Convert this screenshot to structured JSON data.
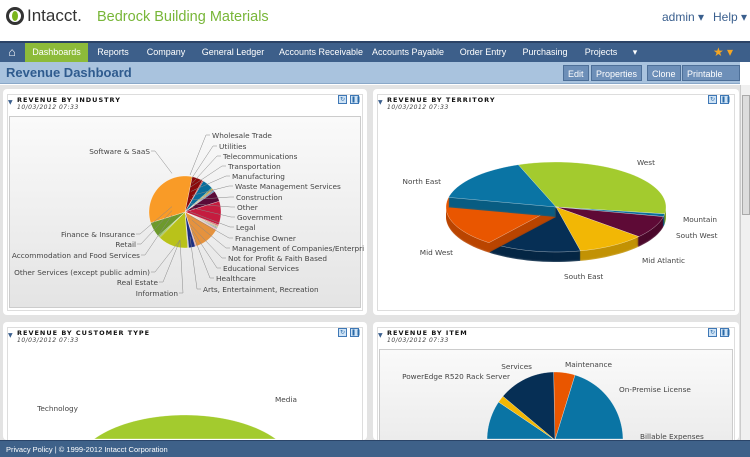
{
  "header": {
    "brand": "Intacct.",
    "company": "Bedrock Building Materials",
    "user_menu": "admin ▾",
    "help_menu": "Help ▾"
  },
  "nav": {
    "items": [
      "Dashboards",
      "Reports",
      "Company",
      "General Ledger",
      "Accounts Receivable",
      "Accounts Payable",
      "Order Entry",
      "Purchasing",
      "Projects"
    ],
    "active": "Dashboards",
    "more": "▾",
    "favorites": "★ ▾"
  },
  "titlebar": {
    "title": "Revenue Dashboard",
    "buttons": [
      "Edit",
      "Properties",
      "Clone",
      "Printable View"
    ]
  },
  "colors": {
    "nav": "#3d5f8a",
    "active": "#8dbb3a",
    "titlebar": "#a9c3de",
    "footer": "#3e6189"
  },
  "widgets": [
    {
      "title": "REVENUE BY INDUSTRY",
      "date": "10/03/2012 07:33",
      "chart_type": "pie",
      "slices": [
        {
          "label": "Wholesale Trade",
          "value": 5,
          "color": "#8b0a0a"
        },
        {
          "label": "Utilities",
          "value": 0.5,
          "color": "#c01a1a"
        },
        {
          "label": "Telecommunications",
          "value": 5,
          "color": "#0a6d9c"
        },
        {
          "label": "Transportation",
          "value": 0.5,
          "color": "#3a8a3a"
        },
        {
          "label": "Manufacturing",
          "value": 0.5,
          "color": "#d47a00"
        },
        {
          "label": "Waste Management Services",
          "value": 0.5,
          "color": "#777"
        },
        {
          "label": "Construction",
          "value": 0.5,
          "color": "#2b6fa0"
        },
        {
          "label": "Other",
          "value": 5,
          "color": "#5a0a38"
        },
        {
          "label": "Government",
          "value": 11,
          "color": "#c51c3f"
        },
        {
          "label": "Legal",
          "value": 0.5,
          "color": "#a33"
        },
        {
          "label": "Franchise Owner",
          "value": 0.5,
          "color": "#c96"
        },
        {
          "label": "Management of Companies/Enterpri",
          "value": 0.5,
          "color": "#996"
        },
        {
          "label": "Not for Profit & Faith Based",
          "value": 0.5,
          "color": "#699"
        },
        {
          "label": "Educational Services",
          "value": 0.5,
          "color": "#e9b"
        },
        {
          "label": "Healthcare",
          "value": 12,
          "color": "#e5923e"
        },
        {
          "label": "Arts, Entertainment, Recreation",
          "value": 0.5,
          "color": "#d88"
        },
        {
          "label": "Information",
          "value": 3,
          "color": "#1f2f80"
        },
        {
          "label": "Real Estate",
          "value": 0.5,
          "color": "#aaa"
        },
        {
          "label": "Other Services (except public admin)",
          "value": 14,
          "color": "#b9c21a"
        },
        {
          "label": "Accommodation and Food Services",
          "value": 0.5,
          "color": "#9a3"
        },
        {
          "label": "Retail",
          "value": 0.5,
          "color": "#6a3"
        },
        {
          "label": "Finance & Insurance",
          "value": 7,
          "color": "#6d9a2c"
        },
        {
          "label": "Software & SaaS",
          "value": 34,
          "color": "#f99b27"
        }
      ]
    },
    {
      "title": "REVENUE BY TERRITORY",
      "date": "10/03/2012 07:33",
      "chart_type": "pie-3d",
      "slices": [
        {
          "label": "West",
          "value": 33,
          "color": "#a3cb2e"
        },
        {
          "label": "Mountain",
          "value": 1,
          "color": "#0a6d9c"
        },
        {
          "label": "South West",
          "value": 8,
          "color": "#5e0a36"
        },
        {
          "label": "Mid Atlantic",
          "value": 10,
          "color": "#f2b705"
        },
        {
          "label": "South East",
          "value": 14,
          "color": "#062f55"
        },
        {
          "label": "Mid West",
          "value": 18,
          "color": "#e95600"
        },
        {
          "label": "North East",
          "value": 16,
          "color": "#0a74a4"
        }
      ]
    },
    {
      "title": "REVENUE BY CUSTOMER TYPE",
      "date": "10/03/2012 07:33",
      "chart_type": "doughnut-3d",
      "slices": [
        {
          "label": "Media",
          "value": 24,
          "color": "#a3cb2e"
        },
        {
          "label": "Technology",
          "value": 26,
          "color": "#0a74a4"
        }
      ]
    },
    {
      "title": "REVENUE BY ITEM",
      "date": "10/03/2012 07:33",
      "chart_type": "pie",
      "slices": [
        {
          "label": "Maintenance",
          "value": 3,
          "color": "#e95600"
        },
        {
          "label": "On-Premise License",
          "value": 22,
          "color": "#0a74a4"
        },
        {
          "label": "Billable Expenses",
          "value": 25,
          "color": "#0a74a4"
        },
        {
          "label": "PowerEdge R520 Rack Server",
          "value": 1,
          "color": "#f2b705"
        },
        {
          "label": "Services",
          "value": 8,
          "color": "#062f55"
        }
      ]
    }
  ],
  "footer": {
    "text": "Privacy Policy | © 1999-2012  Intacct Corporation"
  }
}
